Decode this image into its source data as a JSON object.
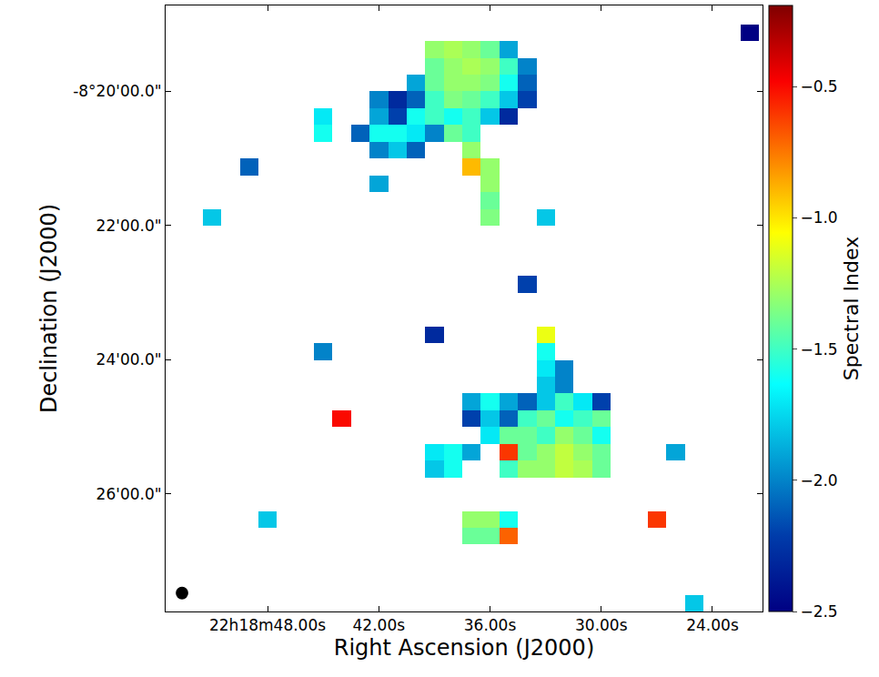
{
  "chart_data": {
    "type": "heatmap",
    "x_label": "Right Ascension (J2000)",
    "y_label": "Declination (J2000)",
    "colorbar_title": "Spectral Index",
    "grid": false,
    "xlim": [
      53.5,
      21.3
    ],
    "xticks": [
      {
        "value": 48,
        "label": "22h18m48.00s"
      },
      {
        "value": 42,
        "label": "42.00s"
      },
      {
        "value": 36,
        "label": "36.00s"
      },
      {
        "value": 30,
        "label": "30.00s"
      },
      {
        "value": 24,
        "label": "24.00s"
      }
    ],
    "ylim": [
      -8.4625,
      -8.312
    ],
    "yticks": [
      {
        "value": -8.333333,
        "label": "-8°20'00.0\""
      },
      {
        "value": -8.366667,
        "label": "22'00.0\""
      },
      {
        "value": -8.4,
        "label": "24'00.0\""
      },
      {
        "value": -8.433333,
        "label": "26'00.0\""
      }
    ],
    "zlim": [
      -2.5,
      -0.19
    ],
    "zticks": [
      {
        "value": -0.5,
        "label": "−0.5"
      },
      {
        "value": -1.0,
        "label": "−1.0"
      },
      {
        "value": -1.5,
        "label": "−1.5"
      },
      {
        "value": -2.0,
        "label": "−2.0"
      },
      {
        "value": -2.5,
        "label": "−2.5"
      }
    ],
    "x": [
      53,
      52,
      51,
      50,
      49,
      48,
      47,
      46,
      45,
      44,
      43,
      42,
      41,
      40,
      39,
      38,
      37,
      36,
      35,
      34,
      33,
      32,
      31,
      30,
      29,
      28,
      27,
      26,
      25,
      24,
      23,
      22
    ],
    "y": [
      -8.31458,
      -8.31875,
      -8.32292,
      -8.32708,
      -8.33125,
      -8.33542,
      -8.33958,
      -8.34375,
      -8.34792,
      -8.35208,
      -8.35625,
      -8.36042,
      -8.36458,
      -8.36875,
      -8.37292,
      -8.37708,
      -8.38125,
      -8.38542,
      -8.38958,
      -8.39375,
      -8.39792,
      -8.40208,
      -8.40625,
      -8.41042,
      -8.41458,
      -8.41875,
      -8.42292,
      -8.42708,
      -8.43125,
      -8.43542,
      -8.43958,
      -8.44375,
      -8.44792,
      -8.45208,
      -8.45625,
      -8.46042
    ],
    "z": [
      [
        null,
        null,
        null,
        null,
        null,
        null,
        null,
        null,
        null,
        null,
        null,
        null,
        null,
        null,
        null,
        null,
        null,
        null,
        null,
        null,
        null,
        null,
        null,
        null,
        null,
        null,
        null,
        null,
        null,
        null,
        null,
        null
      ],
      [
        null,
        null,
        null,
        null,
        null,
        null,
        null,
        null,
        null,
        null,
        null,
        null,
        null,
        null,
        null,
        null,
        null,
        null,
        null,
        null,
        null,
        null,
        null,
        null,
        null,
        null,
        null,
        null,
        null,
        null,
        null,
        -2.5
      ],
      [
        null,
        null,
        null,
        null,
        null,
        null,
        null,
        null,
        null,
        null,
        null,
        null,
        null,
        null,
        -1.3,
        -1.25,
        -1.3,
        -1.4,
        -1.9,
        null,
        null,
        null,
        null,
        null,
        null,
        null,
        null,
        null,
        null,
        null,
        null,
        null
      ],
      [
        null,
        null,
        null,
        null,
        null,
        null,
        null,
        null,
        null,
        null,
        null,
        null,
        null,
        null,
        -1.4,
        -1.3,
        -1.25,
        -1.3,
        -1.5,
        -2.0,
        null,
        null,
        null,
        null,
        null,
        null,
        null,
        null,
        null,
        null,
        null,
        null
      ],
      [
        null,
        null,
        null,
        null,
        null,
        null,
        null,
        null,
        null,
        null,
        null,
        null,
        null,
        -1.9,
        -1.4,
        -1.3,
        -1.3,
        -1.35,
        -1.6,
        -2.1,
        null,
        null,
        null,
        null,
        null,
        null,
        null,
        null,
        null,
        null,
        null,
        null
      ],
      [
        null,
        null,
        null,
        null,
        null,
        null,
        null,
        null,
        null,
        null,
        null,
        -2.0,
        -2.3,
        -2.1,
        -1.5,
        -1.35,
        -1.4,
        -1.5,
        -1.8,
        -2.2,
        null,
        null,
        null,
        null,
        null,
        null,
        null,
        null,
        null,
        null,
        null,
        null
      ],
      [
        null,
        null,
        null,
        null,
        null,
        null,
        null,
        null,
        -1.7,
        null,
        null,
        -1.9,
        -2.2,
        -1.6,
        -1.5,
        -1.6,
        -1.5,
        -1.8,
        -2.3,
        null,
        null,
        null,
        null,
        null,
        null,
        null,
        null,
        null,
        null,
        null,
        null,
        null
      ],
      [
        null,
        null,
        null,
        null,
        null,
        null,
        null,
        null,
        -1.6,
        null,
        -2.1,
        -1.6,
        -1.6,
        -1.7,
        -2.0,
        -1.4,
        -1.5,
        null,
        null,
        null,
        null,
        null,
        null,
        null,
        null,
        null,
        null,
        null,
        null,
        null,
        null,
        null
      ],
      [
        null,
        null,
        null,
        null,
        null,
        null,
        null,
        null,
        null,
        null,
        null,
        -2.0,
        -1.8,
        -2.1,
        null,
        null,
        -1.3,
        null,
        null,
        null,
        null,
        null,
        null,
        null,
        null,
        null,
        null,
        null,
        null,
        null,
        null,
        null
      ],
      [
        null,
        null,
        null,
        null,
        -2.1,
        null,
        null,
        null,
        null,
        null,
        null,
        null,
        null,
        null,
        null,
        null,
        -0.9,
        -1.3,
        null,
        null,
        null,
        null,
        null,
        null,
        null,
        null,
        null,
        null,
        null,
        null,
        null,
        null
      ],
      [
        null,
        null,
        null,
        null,
        null,
        null,
        null,
        null,
        null,
        null,
        null,
        -1.9,
        null,
        null,
        null,
        null,
        null,
        -1.3,
        null,
        null,
        null,
        null,
        null,
        null,
        null,
        null,
        null,
        null,
        null,
        null,
        null,
        null
      ],
      [
        null,
        null,
        null,
        null,
        null,
        null,
        null,
        null,
        null,
        null,
        null,
        null,
        null,
        null,
        null,
        null,
        null,
        -1.4,
        null,
        null,
        null,
        null,
        null,
        null,
        null,
        null,
        null,
        null,
        null,
        null,
        null,
        null
      ],
      [
        null,
        null,
        -1.8,
        null,
        null,
        null,
        null,
        null,
        null,
        null,
        null,
        null,
        null,
        null,
        null,
        null,
        null,
        -1.35,
        null,
        null,
        -1.8,
        null,
        null,
        null,
        null,
        null,
        null,
        null,
        null,
        null,
        null,
        null
      ],
      [
        null,
        null,
        null,
        null,
        null,
        null,
        null,
        null,
        null,
        null,
        null,
        null,
        null,
        null,
        null,
        null,
        null,
        null,
        null,
        null,
        null,
        null,
        null,
        null,
        null,
        null,
        null,
        null,
        null,
        null,
        null,
        null
      ],
      [
        null,
        null,
        null,
        null,
        null,
        null,
        null,
        null,
        null,
        null,
        null,
        null,
        null,
        null,
        null,
        null,
        null,
        null,
        null,
        null,
        null,
        null,
        null,
        null,
        null,
        null,
        null,
        null,
        null,
        null,
        null,
        null
      ],
      [
        null,
        null,
        null,
        null,
        null,
        null,
        null,
        null,
        null,
        null,
        null,
        null,
        null,
        null,
        null,
        null,
        null,
        null,
        null,
        null,
        null,
        null,
        null,
        null,
        null,
        null,
        null,
        null,
        null,
        null,
        null,
        null
      ],
      [
        null,
        null,
        null,
        null,
        null,
        null,
        null,
        null,
        null,
        null,
        null,
        null,
        null,
        null,
        null,
        null,
        null,
        null,
        null,
        -2.2,
        null,
        null,
        null,
        null,
        null,
        null,
        null,
        null,
        null,
        null,
        null,
        null
      ],
      [
        null,
        null,
        null,
        null,
        null,
        null,
        null,
        null,
        null,
        null,
        null,
        null,
        null,
        null,
        null,
        null,
        null,
        null,
        null,
        null,
        null,
        null,
        null,
        null,
        null,
        null,
        null,
        null,
        null,
        null,
        null,
        null
      ],
      [
        null,
        null,
        null,
        null,
        null,
        null,
        null,
        null,
        null,
        null,
        null,
        null,
        null,
        null,
        null,
        null,
        null,
        null,
        null,
        null,
        null,
        null,
        null,
        null,
        null,
        null,
        null,
        null,
        null,
        null,
        null,
        null
      ],
      [
        null,
        null,
        null,
        null,
        null,
        null,
        null,
        null,
        null,
        null,
        null,
        null,
        null,
        null,
        -2.3,
        null,
        null,
        null,
        null,
        null,
        -1.1,
        null,
        null,
        null,
        null,
        null,
        null,
        null,
        null,
        null,
        null,
        null
      ],
      [
        null,
        null,
        null,
        null,
        null,
        null,
        null,
        null,
        -2.0,
        null,
        null,
        null,
        null,
        null,
        null,
        null,
        null,
        null,
        null,
        null,
        -1.6,
        null,
        null,
        null,
        null,
        null,
        null,
        null,
        null,
        null,
        null,
        null
      ],
      [
        null,
        null,
        null,
        null,
        null,
        null,
        null,
        null,
        null,
        null,
        null,
        null,
        null,
        null,
        null,
        null,
        null,
        null,
        null,
        null,
        -1.7,
        -2.0,
        null,
        null,
        null,
        null,
        null,
        null,
        null,
        null,
        null,
        null
      ],
      [
        null,
        null,
        null,
        null,
        null,
        null,
        null,
        null,
        null,
        null,
        null,
        null,
        null,
        null,
        null,
        null,
        null,
        null,
        null,
        null,
        -1.8,
        -2.0,
        null,
        null,
        null,
        null,
        null,
        null,
        null,
        null,
        null,
        null
      ],
      [
        null,
        null,
        null,
        null,
        null,
        null,
        null,
        null,
        null,
        null,
        null,
        null,
        null,
        null,
        null,
        null,
        -1.9,
        -1.6,
        -1.9,
        -2.1,
        -1.8,
        -1.5,
        -1.7,
        -2.2,
        null,
        null,
        null,
        null,
        null,
        null,
        null,
        null
      ],
      [
        null,
        null,
        null,
        null,
        null,
        null,
        null,
        null,
        null,
        -0.5,
        null,
        null,
        null,
        null,
        null,
        null,
        -2.2,
        -1.8,
        -2.1,
        -1.5,
        -1.4,
        -1.6,
        -1.5,
        -1.4,
        null,
        null,
        null,
        null,
        null,
        null,
        null,
        null
      ],
      [
        null,
        null,
        null,
        null,
        null,
        null,
        null,
        null,
        null,
        null,
        null,
        null,
        null,
        null,
        null,
        null,
        null,
        -1.7,
        -1.4,
        -1.4,
        -1.5,
        -1.3,
        -1.4,
        -1.6,
        null,
        null,
        null,
        null,
        null,
        null,
        null,
        null
      ],
      [
        null,
        null,
        null,
        null,
        null,
        null,
        null,
        null,
        null,
        null,
        null,
        null,
        null,
        null,
        -1.7,
        -1.6,
        -1.9,
        null,
        -0.6,
        -1.4,
        -1.3,
        -1.2,
        -1.3,
        -1.4,
        null,
        null,
        null,
        -1.9,
        null,
        null,
        null,
        null
      ],
      [
        null,
        null,
        null,
        null,
        null,
        null,
        null,
        null,
        null,
        null,
        null,
        null,
        null,
        null,
        -1.8,
        -1.6,
        null,
        null,
        -1.5,
        -1.3,
        -1.3,
        -1.2,
        -1.25,
        -1.4,
        null,
        null,
        null,
        null,
        null,
        null,
        null,
        null
      ],
      [
        null,
        null,
        null,
        null,
        null,
        null,
        null,
        null,
        null,
        null,
        null,
        null,
        null,
        null,
        null,
        null,
        null,
        null,
        null,
        null,
        null,
        null,
        null,
        null,
        null,
        null,
        null,
        null,
        null,
        null,
        null,
        null
      ],
      [
        null,
        null,
        null,
        null,
        null,
        null,
        null,
        null,
        null,
        null,
        null,
        null,
        null,
        null,
        null,
        null,
        null,
        null,
        null,
        null,
        null,
        null,
        null,
        null,
        null,
        null,
        null,
        null,
        null,
        null,
        null,
        null
      ],
      [
        null,
        null,
        null,
        null,
        null,
        -1.8,
        null,
        null,
        null,
        null,
        null,
        null,
        null,
        null,
        null,
        null,
        -1.3,
        -1.3,
        -1.6,
        null,
        null,
        null,
        null,
        null,
        null,
        null,
        -0.6,
        null,
        null,
        null,
        null,
        null
      ],
      [
        null,
        null,
        null,
        null,
        null,
        null,
        null,
        null,
        null,
        null,
        null,
        null,
        null,
        null,
        null,
        null,
        -1.4,
        -1.4,
        -0.7,
        null,
        null,
        null,
        null,
        null,
        null,
        null,
        null,
        null,
        null,
        null,
        null,
        null
      ],
      [
        null,
        null,
        null,
        null,
        null,
        null,
        null,
        null,
        null,
        null,
        null,
        null,
        null,
        null,
        null,
        null,
        null,
        null,
        null,
        null,
        null,
        null,
        null,
        null,
        null,
        null,
        null,
        null,
        null,
        null,
        null,
        null
      ],
      [
        null,
        null,
        null,
        null,
        null,
        null,
        null,
        null,
        null,
        null,
        null,
        null,
        null,
        null,
        null,
        null,
        null,
        null,
        null,
        null,
        null,
        null,
        null,
        null,
        null,
        null,
        null,
        null,
        null,
        null,
        null,
        null
      ],
      [
        null,
        null,
        null,
        null,
        null,
        null,
        null,
        null,
        null,
        null,
        null,
        null,
        null,
        null,
        null,
        null,
        null,
        null,
        null,
        null,
        null,
        null,
        null,
        null,
        null,
        null,
        null,
        null,
        null,
        null,
        null,
        null
      ],
      [
        null,
        null,
        null,
        null,
        null,
        null,
        null,
        null,
        null,
        null,
        null,
        null,
        null,
        null,
        null,
        null,
        null,
        null,
        null,
        null,
        null,
        null,
        null,
        null,
        null,
        null,
        null,
        null,
        -1.8,
        null,
        null,
        null
      ]
    ]
  }
}
